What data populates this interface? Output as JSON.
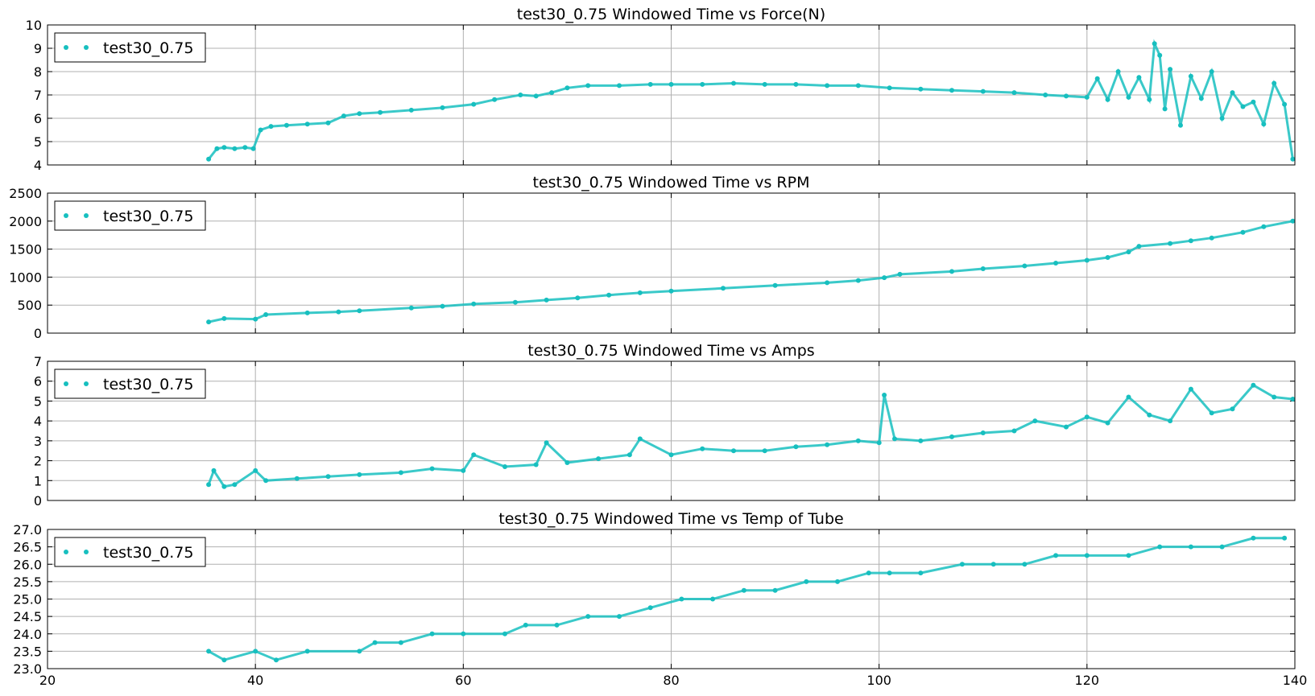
{
  "chart_data": [
    {
      "type": "scatter",
      "title": "test30_0.75 Windowed Time vs Force(N)",
      "xlabel": "",
      "ylabel": "",
      "xlim": [
        20,
        140
      ],
      "ylim": [
        4,
        10
      ],
      "y_ticks": [
        "4",
        "5",
        "6",
        "7",
        "8",
        "9",
        "10"
      ],
      "grid": true,
      "legend": "top-left",
      "series": [
        {
          "name": "test30_0.75",
          "color": "#17bfbf",
          "x": [
            35.5,
            36.3,
            37.0,
            38.0,
            39.0,
            39.8,
            40.5,
            41.5,
            43.0,
            45.0,
            47.0,
            48.5,
            50.0,
            52.0,
            55.0,
            58.0,
            61.0,
            63.0,
            65.5,
            67.0,
            68.5,
            70.0,
            72.0,
            75.0,
            78.0,
            80.0,
            83.0,
            86.0,
            89.0,
            92.0,
            95.0,
            98.0,
            101.0,
            104.0,
            107.0,
            110.0,
            113.0,
            116.0,
            118.0,
            120.0,
            121.0,
            122.0,
            123.0,
            124.0,
            125.0,
            126.0,
            126.5,
            127.0,
            127.5,
            128.0,
            129.0,
            130.0,
            131.0,
            132.0,
            133.0,
            134.0,
            135.0,
            136.0,
            137.0,
            138.0,
            139.0,
            139.8
          ],
          "y": [
            4.25,
            4.7,
            4.75,
            4.7,
            4.75,
            4.7,
            5.5,
            5.65,
            5.7,
            5.75,
            5.8,
            6.1,
            6.2,
            6.25,
            6.35,
            6.45,
            6.6,
            6.8,
            7.0,
            6.95,
            7.1,
            7.3,
            7.4,
            7.4,
            7.45,
            7.45,
            7.45,
            7.5,
            7.45,
            7.45,
            7.4,
            7.4,
            7.3,
            7.25,
            7.2,
            7.15,
            7.1,
            7.0,
            6.95,
            6.9,
            7.7,
            6.8,
            8.0,
            6.9,
            7.75,
            6.8,
            9.2,
            8.7,
            6.4,
            8.1,
            5.7,
            7.8,
            6.85,
            8.0,
            6.0,
            7.1,
            6.5,
            6.7,
            5.75,
            7.5,
            6.6,
            4.25
          ]
        }
      ]
    },
    {
      "type": "scatter",
      "title": "test30_0.75 Windowed Time vs RPM",
      "xlabel": "",
      "ylabel": "",
      "xlim": [
        20,
        140
      ],
      "ylim": [
        0,
        2500
      ],
      "y_ticks": [
        "0",
        "500",
        "1000",
        "1500",
        "2000",
        "2500"
      ],
      "grid": true,
      "legend": "top-left",
      "series": [
        {
          "name": "test30_0.75",
          "color": "#17bfbf",
          "x": [
            35.5,
            37.0,
            40.0,
            41.0,
            45.0,
            48.0,
            50.0,
            55.0,
            58.0,
            61.0,
            65.0,
            68.0,
            71.0,
            74.0,
            77.0,
            80.0,
            85.0,
            90.0,
            95.0,
            98.0,
            100.5,
            102.0,
            107.0,
            110.0,
            114.0,
            117.0,
            120.0,
            122.0,
            124.0,
            125.0,
            128.0,
            130.0,
            132.0,
            135.0,
            137.0,
            139.8
          ],
          "y": [
            200,
            260,
            250,
            330,
            360,
            380,
            400,
            450,
            480,
            520,
            550,
            590,
            630,
            680,
            720,
            750,
            800,
            850,
            900,
            940,
            990,
            1050,
            1100,
            1150,
            1200,
            1250,
            1300,
            1350,
            1450,
            1550,
            1600,
            1650,
            1700,
            1800,
            1900,
            2000
          ]
        }
      ]
    },
    {
      "type": "scatter",
      "title": "test30_0.75 Windowed Time vs Amps",
      "xlabel": "",
      "ylabel": "",
      "xlim": [
        20,
        140
      ],
      "ylim": [
        0,
        7
      ],
      "y_ticks": [
        "0",
        "1",
        "2",
        "3",
        "4",
        "5",
        "6",
        "7"
      ],
      "grid": true,
      "legend": "top-left",
      "series": [
        {
          "name": "test30_0.75",
          "color": "#17bfbf",
          "x": [
            35.5,
            36.0,
            37.0,
            38.0,
            40.0,
            41.0,
            44.0,
            47.0,
            50.0,
            54.0,
            57.0,
            60.0,
            61.0,
            64.0,
            67.0,
            68.0,
            70.0,
            73.0,
            76.0,
            77.0,
            80.0,
            83.0,
            86.0,
            89.0,
            92.0,
            95.0,
            98.0,
            100.0,
            100.5,
            101.5,
            104.0,
            107.0,
            110.0,
            113.0,
            115.0,
            118.0,
            120.0,
            122.0,
            124.0,
            126.0,
            128.0,
            130.0,
            132.0,
            134.0,
            136.0,
            138.0,
            139.8
          ],
          "y": [
            0.8,
            1.5,
            0.7,
            0.8,
            1.5,
            1.0,
            1.1,
            1.2,
            1.3,
            1.4,
            1.6,
            1.5,
            2.3,
            1.7,
            1.8,
            2.9,
            1.9,
            2.1,
            2.3,
            3.1,
            2.3,
            2.6,
            2.5,
            2.5,
            2.7,
            2.8,
            3.0,
            2.9,
            5.3,
            3.1,
            3.0,
            3.2,
            3.4,
            3.5,
            4.0,
            3.7,
            4.2,
            3.9,
            5.2,
            4.3,
            4.0,
            5.6,
            4.4,
            4.6,
            5.8,
            5.2,
            5.1
          ]
        }
      ]
    },
    {
      "type": "scatter",
      "title": "test30_0.75 Windowed Time vs Temp of Tube",
      "xlabel": "",
      "ylabel": "",
      "xlim": [
        20,
        140
      ],
      "ylim": [
        23.0,
        27.0
      ],
      "y_ticks": [
        "23.0",
        "23.5",
        "24.0",
        "24.5",
        "25.0",
        "25.5",
        "26.0",
        "26.5",
        "27.0"
      ],
      "x_ticks": [
        "20",
        "40",
        "60",
        "80",
        "100",
        "120",
        "140"
      ],
      "grid": true,
      "legend": "top-left",
      "series": [
        {
          "name": "test30_0.75",
          "color": "#17bfbf",
          "x": [
            35.5,
            37.0,
            40.0,
            42.0,
            45.0,
            50.0,
            51.5,
            54.0,
            57.0,
            60.0,
            64.0,
            66.0,
            69.0,
            72.0,
            75.0,
            78.0,
            81.0,
            84.0,
            87.0,
            90.0,
            93.0,
            96.0,
            99.0,
            101.0,
            104.0,
            108.0,
            111.0,
            114.0,
            117.0,
            120.0,
            124.0,
            127.0,
            130.0,
            133.0,
            136.0,
            139.0
          ],
          "y": [
            23.5,
            23.25,
            23.5,
            23.25,
            23.5,
            23.5,
            23.75,
            23.75,
            24.0,
            24.0,
            24.0,
            24.25,
            24.25,
            24.5,
            24.5,
            24.75,
            25.0,
            25.0,
            25.25,
            25.25,
            25.5,
            25.5,
            25.75,
            25.75,
            25.75,
            26.0,
            26.0,
            26.0,
            26.25,
            26.25,
            26.25,
            26.5,
            26.5,
            26.5,
            26.75,
            26.75
          ]
        }
      ]
    }
  ]
}
